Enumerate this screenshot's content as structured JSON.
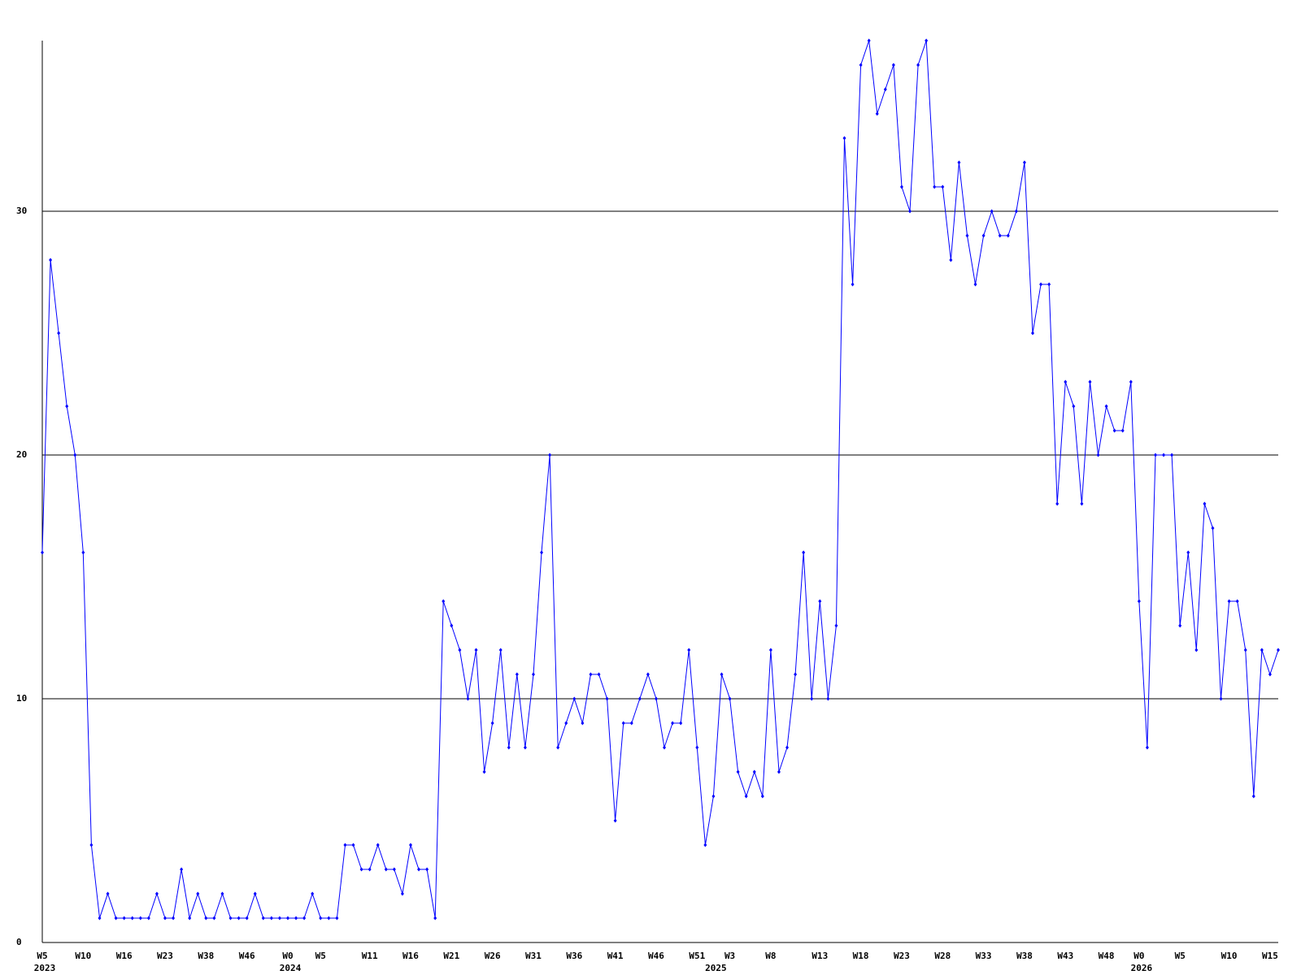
{
  "chart_data": {
    "type": "line",
    "categories": [
      "W5",
      null,
      null,
      null,
      null,
      "W10",
      null,
      null,
      null,
      null,
      "W16",
      null,
      null,
      null,
      null,
      "W23",
      null,
      null,
      null,
      null,
      "W38",
      null,
      null,
      null,
      null,
      "W46",
      null,
      null,
      null,
      null,
      "W0",
      null,
      null,
      null,
      "W5",
      null,
      null,
      null,
      null,
      null,
      "W11",
      null,
      null,
      null,
      null,
      "W16",
      null,
      null,
      null,
      null,
      "W21",
      null,
      null,
      null,
      null,
      "W26",
      null,
      null,
      null,
      null,
      "W31",
      null,
      null,
      null,
      null,
      "W36",
      null,
      null,
      null,
      null,
      "W41",
      null,
      null,
      null,
      null,
      "W46",
      null,
      null,
      null,
      null,
      "W51",
      null,
      null,
      null,
      "W3",
      null,
      null,
      null,
      null,
      "W8",
      null,
      null,
      null,
      null,
      null,
      "W13",
      null,
      null,
      null,
      null,
      "W18",
      null,
      null,
      null,
      null,
      "W23",
      null,
      null,
      null,
      null,
      "W28",
      null,
      null,
      null,
      null,
      "W33",
      null,
      null,
      null,
      null,
      "W38",
      null,
      null,
      null,
      null,
      "W43",
      null,
      null,
      null,
      null,
      "W48",
      null,
      null,
      null,
      "W0",
      null,
      null,
      null,
      null,
      "W5",
      null,
      null,
      null,
      null,
      null,
      "W10",
      null,
      null,
      null,
      null,
      "W15",
      null
    ],
    "year_labels": [
      {
        "value": 0,
        "label": "2023"
      },
      {
        "value": 30,
        "label": "2024"
      },
      {
        "value": 82,
        "label": "2025"
      },
      {
        "value": 134,
        "label": "2026"
      }
    ],
    "values": [
      16,
      28,
      25,
      22,
      20,
      16,
      4,
      1,
      2,
      1,
      1,
      1,
      1,
      1,
      2,
      1,
      1,
      3,
      1,
      2,
      1,
      1,
      2,
      1,
      1,
      1,
      2,
      1,
      1,
      1,
      1,
      1,
      1,
      2,
      1,
      1,
      1,
      4,
      4,
      3,
      3,
      4,
      3,
      3,
      2,
      4,
      3,
      3,
      1,
      14,
      13,
      12,
      10,
      12,
      7,
      9,
      12,
      8,
      11,
      8,
      11,
      16,
      20,
      8,
      9,
      10,
      9,
      11,
      11,
      10,
      5,
      9,
      9,
      10,
      11,
      10,
      8,
      9,
      9,
      12,
      8,
      4,
      6,
      11,
      10,
      7,
      6,
      7,
      6,
      12,
      7,
      8,
      11,
      16,
      10,
      14,
      10,
      13,
      33,
      27,
      36,
      37,
      34,
      35,
      36,
      31,
      30,
      36,
      37,
      31,
      31,
      28,
      32,
      29,
      27,
      29,
      30,
      29,
      29,
      30,
      32,
      25,
      27,
      27,
      18,
      23,
      22,
      18,
      23,
      20,
      22,
      21,
      21,
      23,
      14,
      8,
      20,
      20,
      20,
      13,
      16,
      12,
      18,
      17,
      10,
      14,
      14,
      12,
      6,
      12,
      11,
      12
    ],
    "color": "#0000ff",
    "ylim": [
      0,
      37
    ],
    "yticks": [
      0,
      10,
      20,
      30
    ],
    "grid": true
  }
}
